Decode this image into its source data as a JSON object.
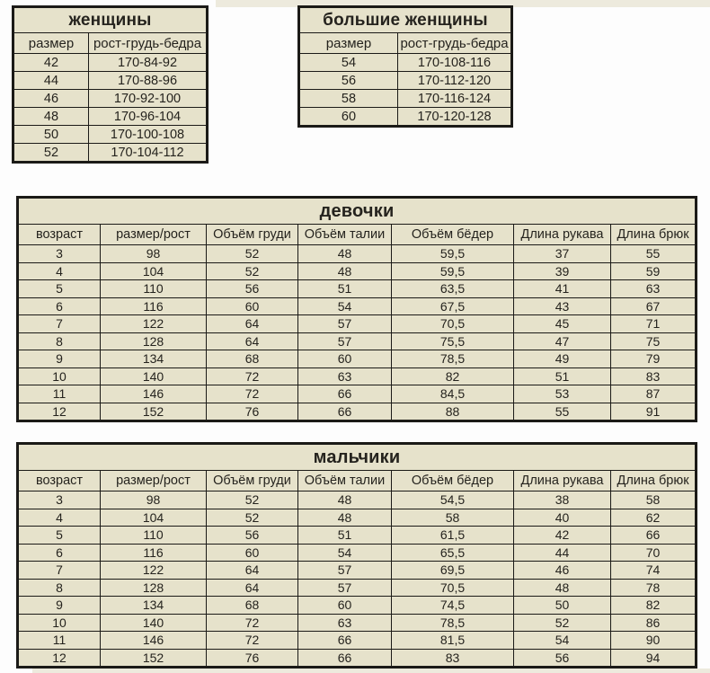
{
  "colors": {
    "page_background": "#fdfdfd",
    "cell_background": "#e6e2cb",
    "table_border": "#1b1a17",
    "text": "#25231e",
    "cropped_row_strip": "#edeadd"
  },
  "women_table": {
    "title": "женщины",
    "headers": [
      "размер",
      "рост-грудь-бедра"
    ],
    "rows": [
      [
        "42",
        "170-84-92"
      ],
      [
        "44",
        "170-88-96"
      ],
      [
        "46",
        "170-92-100"
      ],
      [
        "48",
        "170-96-104"
      ],
      [
        "50",
        "170-100-108"
      ],
      [
        "52",
        "170-104-112"
      ]
    ]
  },
  "large_women_table": {
    "title": "большие женщины",
    "headers": [
      "размер",
      "рост-грудь-бедра"
    ],
    "rows": [
      [
        "54",
        "170-108-116"
      ],
      [
        "56",
        "170-112-120"
      ],
      [
        "58",
        "170-116-124"
      ],
      [
        "60",
        "170-120-128"
      ]
    ]
  },
  "girls_table": {
    "title": "девочки",
    "headers": [
      "возраст",
      "размер/рост",
      "Объём груди",
      "Объём талии",
      "Объём бёдер",
      "Длина рукава",
      "Длина брюк"
    ],
    "rows": [
      [
        "3",
        "98",
        "52",
        "48",
        "59,5",
        "37",
        "55"
      ],
      [
        "4",
        "104",
        "52",
        "48",
        "59,5",
        "39",
        "59"
      ],
      [
        "5",
        "110",
        "56",
        "51",
        "63,5",
        "41",
        "63"
      ],
      [
        "6",
        "116",
        "60",
        "54",
        "67,5",
        "43",
        "67"
      ],
      [
        "7",
        "122",
        "64",
        "57",
        "70,5",
        "45",
        "71"
      ],
      [
        "8",
        "128",
        "64",
        "57",
        "75,5",
        "47",
        "75"
      ],
      [
        "9",
        "134",
        "68",
        "60",
        "78,5",
        "49",
        "79"
      ],
      [
        "10",
        "140",
        "72",
        "63",
        "82",
        "51",
        "83"
      ],
      [
        "11",
        "146",
        "72",
        "66",
        "84,5",
        "53",
        "87"
      ],
      [
        "12",
        "152",
        "76",
        "66",
        "88",
        "55",
        "91"
      ]
    ]
  },
  "boys_table": {
    "title": "мальчики",
    "headers": [
      "возраст",
      "размер/рост",
      "Объём груди",
      "Объём талии",
      "Объём бёдер",
      "Длина рукава",
      "Длина брюк"
    ],
    "rows": [
      [
        "3",
        "98",
        "52",
        "48",
        "54,5",
        "38",
        "58"
      ],
      [
        "4",
        "104",
        "52",
        "48",
        "58",
        "40",
        "62"
      ],
      [
        "5",
        "110",
        "56",
        "51",
        "61,5",
        "42",
        "66"
      ],
      [
        "6",
        "116",
        "60",
        "54",
        "65,5",
        "44",
        "70"
      ],
      [
        "7",
        "122",
        "64",
        "57",
        "69,5",
        "46",
        "74"
      ],
      [
        "8",
        "128",
        "64",
        "57",
        "70,5",
        "48",
        "78"
      ],
      [
        "9",
        "134",
        "68",
        "60",
        "74,5",
        "50",
        "82"
      ],
      [
        "10",
        "140",
        "72",
        "63",
        "78,5",
        "52",
        "86"
      ],
      [
        "11",
        "146",
        "72",
        "66",
        "81,5",
        "54",
        "90"
      ],
      [
        "12",
        "152",
        "76",
        "66",
        "83",
        "56",
        "94"
      ]
    ]
  }
}
